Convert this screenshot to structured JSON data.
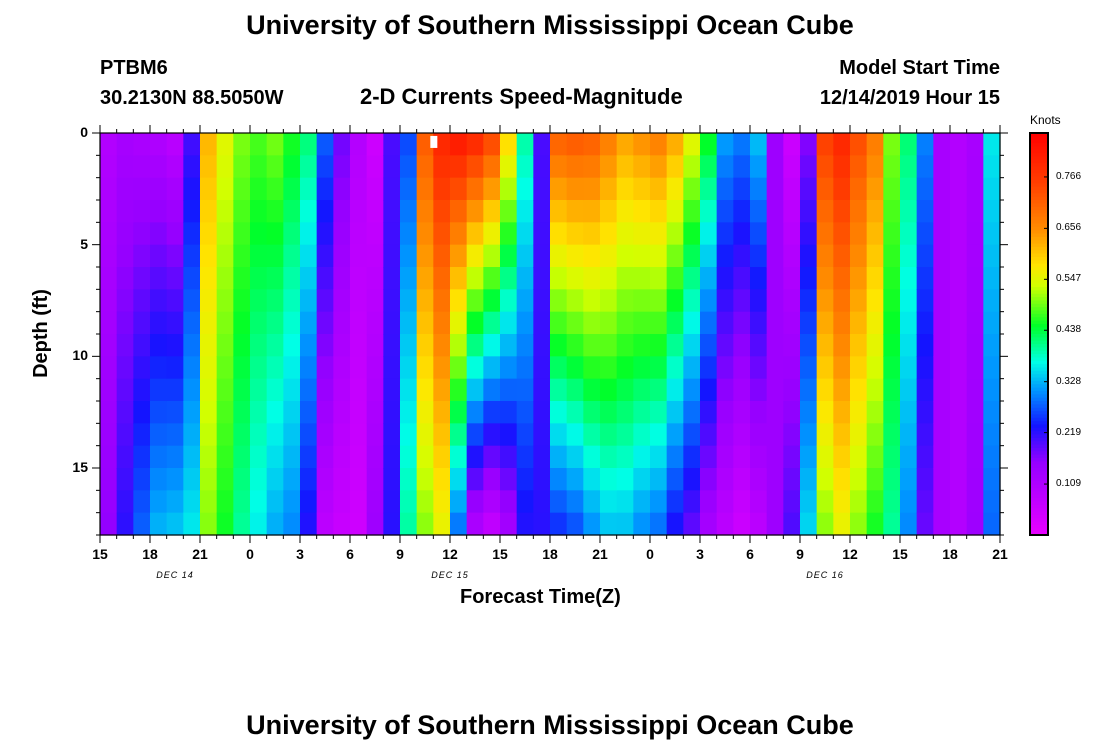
{
  "page": {
    "title_top": "University of Southern Mississippi Ocean Cube",
    "title_bottom": "University of Southern Mississippi Ocean Cube",
    "station": "PTBM6",
    "coords": "30.2130N 88.5050W",
    "plot_title": "2-D Currents Speed-Magnitude",
    "model_label": "Model Start Time",
    "model_time": "12/14/2019 Hour 15"
  },
  "chart_data": {
    "type": "heatmap",
    "title": "2-D Currents Speed-Magnitude",
    "xlabel": "Forecast Time(Z)",
    "ylabel": "Depth (ft)",
    "x_tick_labels": [
      "15",
      "18",
      "21",
      "0",
      "3",
      "6",
      "9",
      "12",
      "15",
      "18",
      "21",
      "0",
      "3",
      "6",
      "9",
      "12",
      "15",
      "18",
      "21"
    ],
    "x_range_hours": [
      0,
      54
    ],
    "date_labels": [
      {
        "text": "DEC 14",
        "hour": 4.5
      },
      {
        "text": "DEC 15",
        "hour": 21
      },
      {
        "text": "DEC 16",
        "hour": 43.5
      }
    ],
    "y_tick_labels": [
      "0",
      "5",
      "10",
      "15"
    ],
    "y_range_ft": [
      0,
      18
    ],
    "colorbar": {
      "unit": "Knots",
      "ticks": [
        "0.766",
        "0.656",
        "0.547",
        "0.438",
        "0.328",
        "0.219",
        "0.109"
      ],
      "min": 0.0,
      "max": 0.86
    },
    "profile": {
      "hours": [
        0,
        0.7,
        1.5,
        2.5,
        3.5,
        4.5,
        5.5,
        6.5,
        7.5,
        8.5,
        9.5,
        10.5,
        11.5,
        12.5,
        13.5,
        14.5,
        15.5,
        16.5,
        17.5,
        18.5,
        19.5,
        20.5,
        21.5,
        22.5,
        23.5,
        24.5,
        25.5,
        26.5,
        27.5,
        28.5,
        29.5,
        30.5,
        31.5,
        32.5,
        33.5,
        34.5,
        35.5,
        36.5,
        37.5,
        38.5,
        39.5,
        40.5,
        41.5,
        42.5,
        43.5,
        44.5,
        45.5,
        46.5,
        47.5,
        48.5,
        49.5,
        50.5,
        51.5,
        52.5,
        53.5,
        54
      ],
      "surface": [
        0.05,
        0.12,
        0.12,
        0.11,
        0.1,
        0.08,
        0.2,
        0.62,
        0.55,
        0.5,
        0.48,
        0.5,
        0.46,
        0.42,
        0.28,
        0.18,
        0.1,
        0.05,
        0.2,
        0.26,
        0.72,
        0.8,
        0.83,
        0.81,
        0.76,
        0.6,
        0.4,
        0.2,
        0.72,
        0.73,
        0.72,
        0.68,
        0.64,
        0.66,
        0.68,
        0.64,
        0.56,
        0.46,
        0.32,
        0.3,
        0.34,
        0.14,
        0.05,
        0.16,
        0.76,
        0.8,
        0.74,
        0.68,
        0.5,
        0.42,
        0.3,
        0.12,
        0.1,
        0.12,
        0.36,
        0.4
      ],
      "bottom": [
        0.05,
        0.2,
        0.22,
        0.28,
        0.33,
        0.34,
        0.36,
        0.5,
        0.45,
        0.4,
        0.36,
        0.32,
        0.3,
        0.22,
        0.08,
        0.06,
        0.05,
        0.14,
        0.22,
        0.4,
        0.5,
        0.55,
        0.28,
        0.1,
        0.06,
        0.12,
        0.22,
        0.22,
        0.24,
        0.26,
        0.3,
        0.33,
        0.33,
        0.3,
        0.28,
        0.22,
        0.18,
        0.12,
        0.08,
        0.05,
        0.08,
        0.14,
        0.2,
        0.35,
        0.5,
        0.55,
        0.5,
        0.45,
        0.4,
        0.3,
        0.18,
        0.12,
        0.1,
        0.14,
        0.28,
        0.3
      ]
    },
    "time_steps": 54,
    "depth_layers": 18,
    "marker": {
      "hour": 20,
      "depth_ft": 0.4
    }
  }
}
